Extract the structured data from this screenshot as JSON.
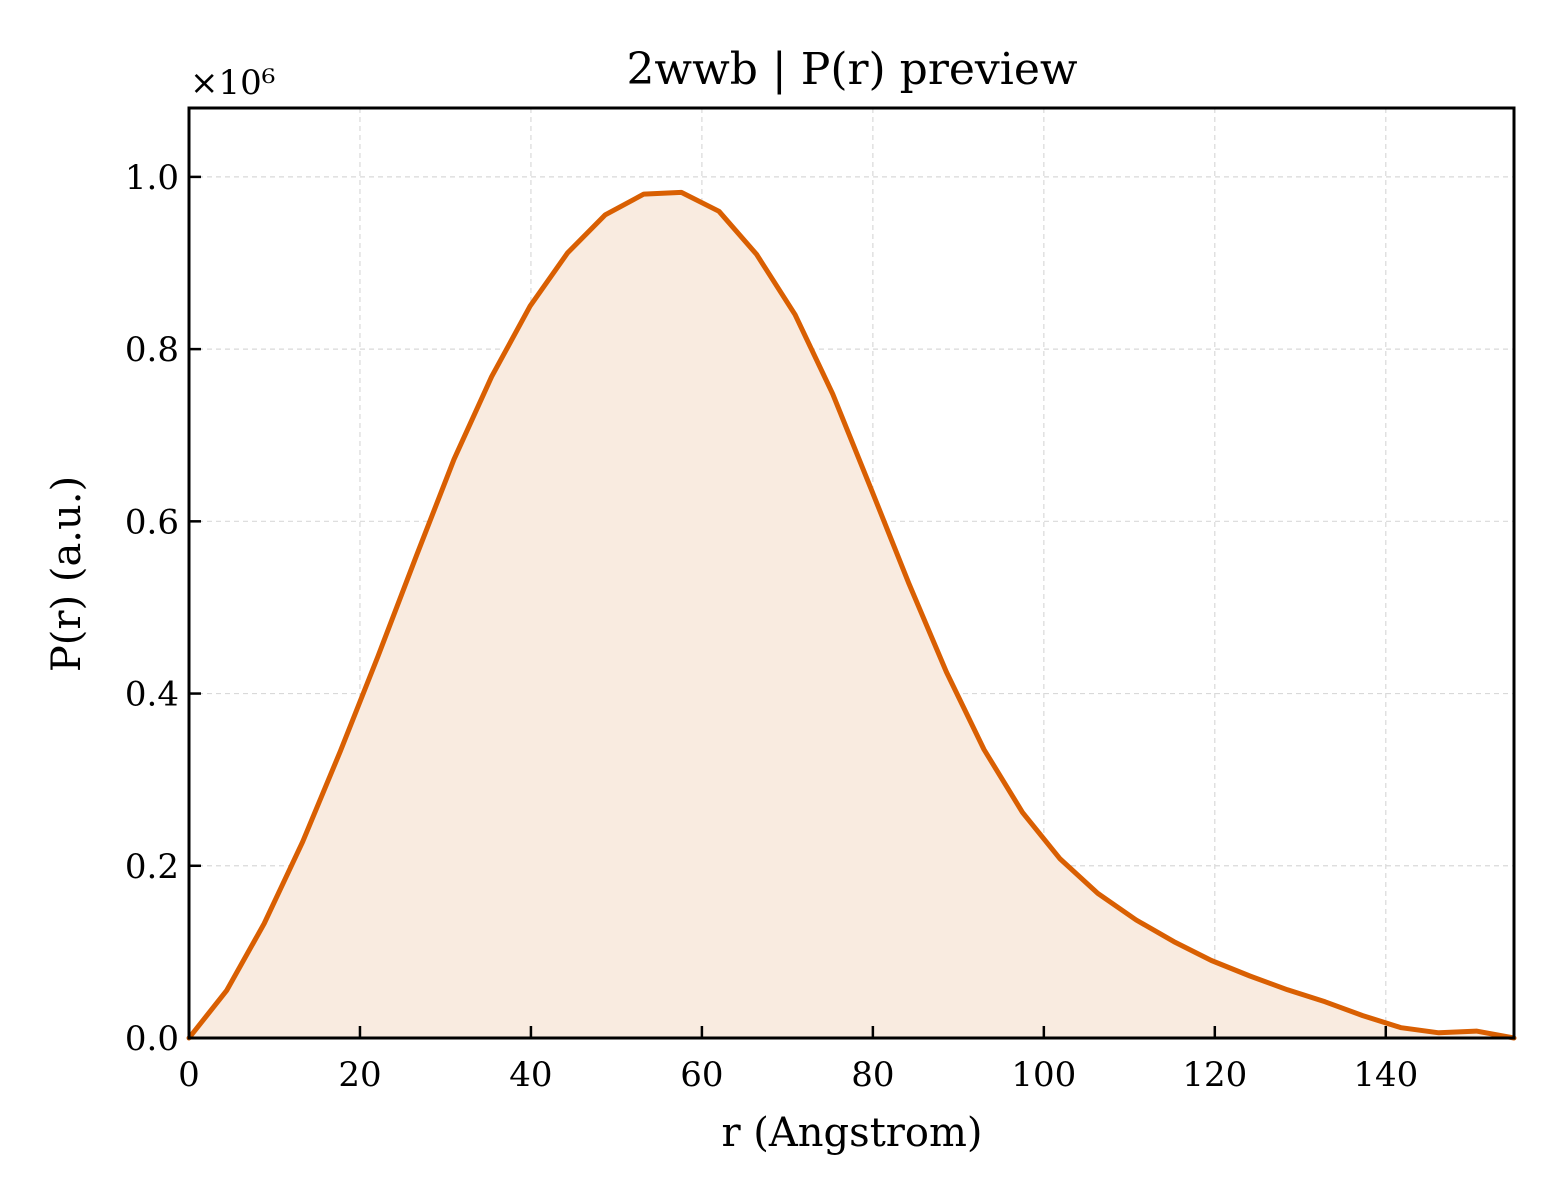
{
  "chart_data": {
    "type": "area",
    "title": "2wwb | P(r) preview",
    "xlabel": "r (Angstrom)",
    "ylabel": "P(r) (a.u.)",
    "y_offset_label": "×10⁶",
    "xlim": [
      0,
      155
    ],
    "ylim": [
      0,
      1.08
    ],
    "xticks": [
      "0",
      "20",
      "40",
      "60",
      "80",
      "100",
      "120",
      "140"
    ],
    "yticks": [
      "0.0",
      "0.2",
      "0.4",
      "0.6",
      "0.8",
      "1.0"
    ],
    "grid": true,
    "line_color": "#d95f02",
    "fill_color": "#f9ebe0",
    "series": [
      {
        "x": [
          0,
          4.4,
          8.8,
          13.3,
          17.7,
          22.1,
          26.6,
          31.0,
          35.4,
          39.9,
          44.3,
          48.7,
          53.2,
          57.6,
          62.0,
          66.4,
          70.9,
          75.3,
          79.7,
          84.2,
          88.6,
          93.0,
          97.5,
          101.9,
          106.3,
          110.8,
          115.2,
          119.6,
          124.1,
          128.5,
          132.9,
          137.3,
          141.8,
          146.2,
          150.6,
          155.0
        ],
        "y": [
          0.0,
          0.055,
          0.133,
          0.228,
          0.333,
          0.443,
          0.56,
          0.672,
          0.768,
          0.85,
          0.912,
          0.956,
          0.98,
          0.982,
          0.96,
          0.91,
          0.84,
          0.748,
          0.64,
          0.528,
          0.425,
          0.335,
          0.262,
          0.208,
          0.168,
          0.137,
          0.112,
          0.09,
          0.072,
          0.056,
          0.042,
          0.026,
          0.012,
          0.006,
          0.008,
          0.0
        ]
      }
    ]
  }
}
